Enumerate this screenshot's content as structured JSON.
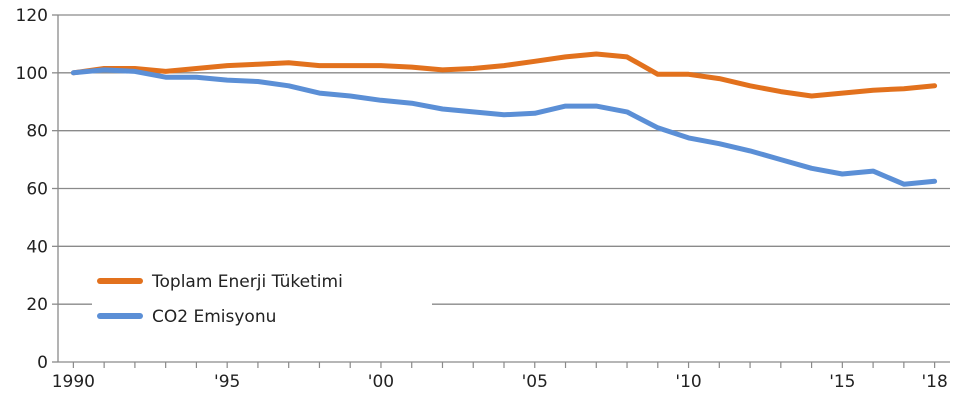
{
  "chart_data": {
    "type": "line",
    "x": [
      1990,
      1991,
      1992,
      1993,
      1994,
      1995,
      1996,
      1997,
      1998,
      1999,
      2000,
      2001,
      2002,
      2003,
      2004,
      2005,
      2006,
      2007,
      2008,
      2009,
      2010,
      2011,
      2012,
      2013,
      2014,
      2015,
      2016,
      2017,
      2018
    ],
    "x_ticks": [
      {
        "value": 1990,
        "label": "1990"
      },
      {
        "value": 1995,
        "label": "'95"
      },
      {
        "value": 2000,
        "label": "'00"
      },
      {
        "value": 2005,
        "label": "'05"
      },
      {
        "value": 2010,
        "label": "'10"
      },
      {
        "value": 2015,
        "label": "'15"
      },
      {
        "value": 2018,
        "label": "'18"
      }
    ],
    "y_ticks": [
      0,
      20,
      40,
      60,
      80,
      100,
      120
    ],
    "ylim": [
      0,
      120
    ],
    "xlim": [
      1989.5,
      2018.5
    ],
    "grid": "horizontal",
    "legend_position": "bottom-left",
    "series": [
      {
        "name": "Toplam Enerji Tüketimi",
        "color": "#e2711d",
        "values": [
          100,
          101.5,
          101.5,
          100.5,
          101.5,
          102.5,
          103,
          103.5,
          102.5,
          102.5,
          102.5,
          102,
          101,
          101.5,
          102.5,
          104,
          105.5,
          106.5,
          105.5,
          99.5,
          99.5,
          98,
          95.5,
          93.5,
          92,
          93,
          94,
          94.5,
          95.5
        ]
      },
      {
        "name": "CO2 Emisyonu",
        "color": "#5b8fd6",
        "values": [
          100,
          101,
          100.5,
          98.5,
          98.5,
          97.5,
          97,
          95.5,
          93,
          92,
          90.5,
          89.5,
          87.5,
          86.5,
          85.5,
          86,
          88.5,
          88.5,
          86.5,
          81,
          77.5,
          75.5,
          73,
          70,
          67,
          65,
          66,
          61.5,
          62.5
        ]
      }
    ]
  }
}
